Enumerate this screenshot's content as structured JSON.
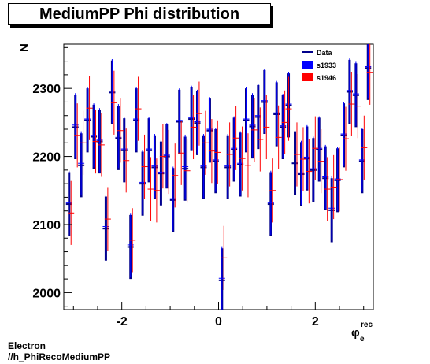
{
  "title": "MediumPP Phi distribution",
  "footer": {
    "line1": "Electron",
    "line2": "//h_PhiRecoMediumPP"
  },
  "chart_data": {
    "type": "scatter",
    "ylabel": "N",
    "xlabel_main": "φ",
    "xlabel_sup": "rec",
    "xlabel_sub": "e",
    "xlim": [
      -3.2,
      3.2
    ],
    "ylim": [
      1975,
      2365
    ],
    "xticks": [
      -2,
      0,
      2
    ],
    "yticks": [
      2000,
      2100,
      2200,
      2300
    ],
    "legend_position": "top-right",
    "series": [
      {
        "name": "Data",
        "color": "#00008b",
        "linewidth": 3,
        "x": [
          -3.09,
          -2.96,
          -2.84,
          -2.71,
          -2.58,
          -2.46,
          -2.33,
          -2.2,
          -2.07,
          -1.95,
          -1.82,
          -1.7,
          -1.57,
          -1.44,
          -1.32,
          -1.19,
          -1.07,
          -0.94,
          -0.81,
          -0.69,
          -0.56,
          -0.44,
          -0.31,
          -0.18,
          -0.06,
          0.07,
          0.19,
          0.32,
          0.45,
          0.57,
          0.7,
          0.82,
          0.95,
          1.08,
          1.2,
          1.33,
          1.45,
          1.58,
          1.71,
          1.83,
          1.96,
          2.08,
          2.21,
          2.34,
          2.46,
          2.59,
          2.71,
          2.84,
          2.97,
          3.09
        ],
        "y": [
          2130,
          2243,
          2187,
          2253,
          2229,
          2222,
          2094,
          2294,
          2227,
          2209,
          2067,
          2253,
          2160,
          2209,
          2184,
          2175,
          2200,
          2136,
          2251,
          2182,
          2255,
          2249,
          2184,
          2238,
          2193,
          2018,
          2184,
          2210,
          2188,
          2253,
          2244,
          2258,
          2280,
          2130,
          2262,
          2243,
          2275,
          2190,
          2174,
          2197,
          2180,
          2210,
          2168,
          2121,
          2165,
          2231,
          2295,
          2290,
          2193,
          2330
        ],
        "err": [
          47,
          47,
          47,
          47,
          47,
          47,
          47,
          47,
          47,
          47,
          47,
          47,
          47,
          47,
          47,
          47,
          47,
          47,
          47,
          47,
          47,
          47,
          47,
          47,
          47,
          47,
          47,
          47,
          47,
          47,
          47,
          47,
          47,
          47,
          47,
          47,
          47,
          47,
          47,
          47,
          47,
          47,
          47,
          47,
          47,
          47,
          47,
          47,
          47,
          47
        ]
      },
      {
        "name": "s1933",
        "color": "#0000ff",
        "linewidth": 1,
        "x": [
          -3.09,
          -2.96,
          -2.84,
          -2.71,
          -2.58,
          -2.46,
          -2.33,
          -2.2,
          -2.07,
          -1.95,
          -1.82,
          -1.7,
          -1.57,
          -1.44,
          -1.32,
          -1.19,
          -1.07,
          -0.94,
          -0.81,
          -0.69,
          -0.56,
          -0.44,
          -0.31,
          -0.18,
          -0.06,
          0.07,
          0.19,
          0.32,
          0.45,
          0.57,
          0.7,
          0.82,
          0.95,
          1.08,
          1.2,
          1.33,
          1.45,
          1.58,
          1.71,
          1.83,
          1.96,
          2.08,
          2.21,
          2.34,
          2.46,
          2.59,
          2.71,
          2.84,
          2.97,
          3.09
        ],
        "y": [
          2132,
          2246,
          2190,
          2255,
          2231,
          2224,
          2097,
          2296,
          2230,
          2211,
          2070,
          2255,
          2162,
          2211,
          2186,
          2177,
          2202,
          2138,
          2253,
          2185,
          2257,
          2251,
          2186,
          2240,
          2195,
          2021,
          2186,
          2212,
          2190,
          2255,
          2246,
          2260,
          2282,
          2132,
          2264,
          2245,
          2277,
          2192,
          2176,
          2199,
          2182,
          2212,
          2170,
          2124,
          2167,
          2233,
          2297,
          2292,
          2195,
          2332
        ],
        "err": [
          47,
          47,
          47,
          47,
          47,
          47,
          47,
          47,
          47,
          47,
          47,
          47,
          47,
          47,
          47,
          47,
          47,
          47,
          47,
          47,
          47,
          47,
          47,
          47,
          47,
          47,
          47,
          47,
          47,
          47,
          47,
          47,
          47,
          47,
          47,
          47,
          47,
          47,
          47,
          47,
          47,
          47,
          47,
          47,
          47,
          47,
          47,
          47,
          47,
          47
        ]
      },
      {
        "name": "s1946",
        "color": "#ff0000",
        "linewidth": 1,
        "x": [
          -3.05,
          -2.92,
          -2.8,
          -2.67,
          -2.54,
          -2.42,
          -2.29,
          -2.16,
          -2.03,
          -1.91,
          -1.78,
          -1.66,
          -1.53,
          -1.4,
          -1.28,
          -1.15,
          -1.03,
          -0.9,
          -0.77,
          -0.65,
          -0.52,
          -0.4,
          -0.27,
          -0.14,
          -0.02,
          0.11,
          0.23,
          0.36,
          0.49,
          0.61,
          0.74,
          0.86,
          0.99,
          1.12,
          1.24,
          1.37,
          1.45,
          1.62,
          1.75,
          1.87,
          2.0,
          2.12,
          2.25,
          2.38,
          2.5,
          2.63,
          2.75,
          2.88,
          3.01,
          3.13
        ],
        "y": [
          2117,
          2231,
          2220,
          2271,
          2222,
          2217,
          2108,
          2279,
          2238,
          2194,
          2077,
          2270,
          2185,
          2152,
          2150,
          2200,
          2192,
          2172,
          2205,
          2179,
          2243,
          2263,
          2220,
          2208,
          2206,
          2051,
          2203,
          2227,
          2197,
          2187,
          2239,
          2225,
          2243,
          2150,
          2228,
          2250,
          2270,
          2203,
          2196,
          2178,
          2212,
          2193,
          2152,
          2155,
          2166,
          2226,
          2277,
          2274,
          2213,
          2323
        ],
        "err": [
          47,
          47,
          47,
          47,
          47,
          47,
          47,
          47,
          47,
          47,
          47,
          47,
          47,
          47,
          47,
          47,
          47,
          47,
          47,
          47,
          47,
          47,
          47,
          47,
          47,
          47,
          47,
          47,
          47,
          47,
          47,
          47,
          47,
          47,
          47,
          47,
          47,
          47,
          47,
          47,
          47,
          47,
          47,
          47,
          47,
          47,
          47,
          47,
          47,
          47
        ]
      }
    ]
  }
}
